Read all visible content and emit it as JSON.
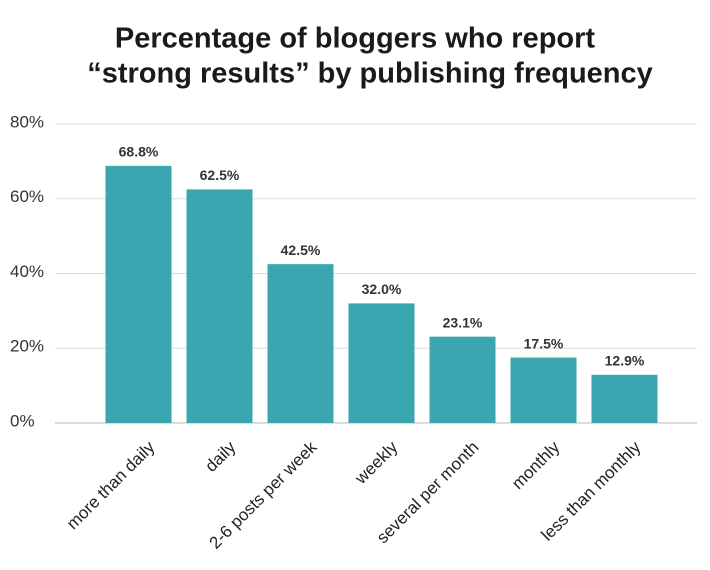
{
  "chart_data": {
    "type": "bar",
    "title": [
      "Percentage of bloggers who report",
      "“strong results” by publishing frequency"
    ],
    "categories": [
      "more than daily",
      "daily",
      "2-6 posts per week",
      "weekly",
      "several per month",
      "monthly",
      "less than monthly"
    ],
    "values": [
      68.8,
      62.5,
      42.5,
      32.0,
      23.1,
      17.5,
      12.9
    ],
    "value_labels": [
      "68.8%",
      "62.5%",
      "42.5%",
      "32.0%",
      "23.1%",
      "17.5%",
      "12.9%"
    ],
    "color": "#3aa6b0",
    "ylim": [
      0,
      80
    ],
    "yticks": [
      {
        "value": 0,
        "label": "0%"
      },
      {
        "value": 20,
        "label": "20%"
      },
      {
        "value": 40,
        "label": "40%"
      },
      {
        "value": 60,
        "label": "60%"
      },
      {
        "value": 80,
        "label": "80%"
      }
    ],
    "grid": true
  }
}
